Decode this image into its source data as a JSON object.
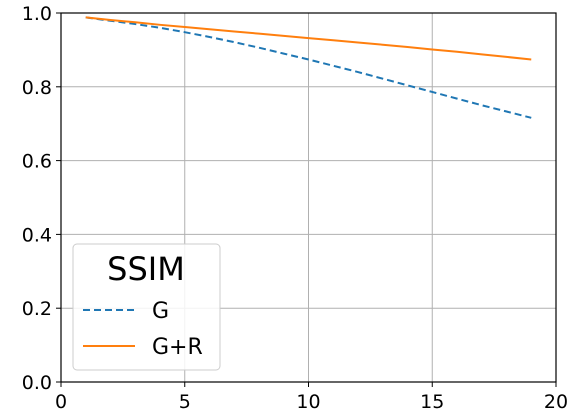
{
  "chart_data": {
    "type": "line",
    "title": "",
    "xlabel": "",
    "ylabel": "",
    "xlim": [
      0,
      20
    ],
    "ylim": [
      0.0,
      1.0
    ],
    "x_ticks": [
      "0",
      "5",
      "10",
      "15",
      "20"
    ],
    "y_ticks": [
      "0.0",
      "0.2",
      "0.4",
      "0.6",
      "0.8",
      "1.0"
    ],
    "grid": true,
    "legend": {
      "title": "SSIM",
      "placement": "lower-left"
    },
    "x": [
      1,
      2,
      3,
      4,
      5,
      6,
      7,
      8,
      9,
      10,
      11,
      12,
      13,
      14,
      15,
      16,
      17,
      18,
      19
    ],
    "series": [
      {
        "name": "G",
        "style": "dashed",
        "color": "#1f77b4",
        "values": [
          0.988,
          0.979,
          0.97,
          0.96,
          0.948,
          0.935,
          0.921,
          0.906,
          0.89,
          0.874,
          0.857,
          0.84,
          0.822,
          0.804,
          0.786,
          0.768,
          0.75,
          0.733,
          0.716
        ]
      },
      {
        "name": "G+R",
        "style": "solid",
        "color": "#ff7f0e",
        "values": [
          0.988,
          0.981,
          0.975,
          0.968,
          0.962,
          0.956,
          0.95,
          0.944,
          0.938,
          0.932,
          0.926,
          0.92,
          0.914,
          0.908,
          0.901,
          0.895,
          0.888,
          0.881,
          0.874
        ]
      }
    ]
  }
}
